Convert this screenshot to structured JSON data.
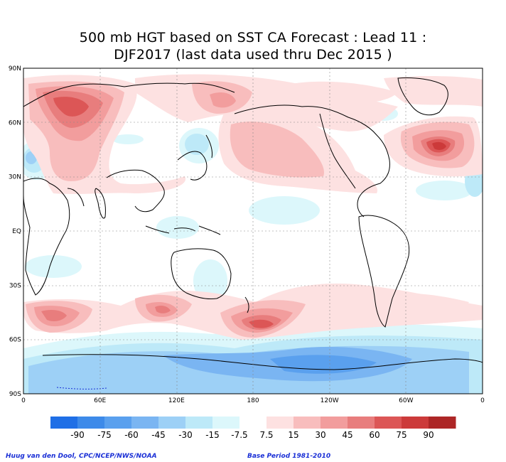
{
  "chart_data": {
    "type": "heatmap",
    "title": "500 mb HGT based on SST CA Forecast : Lead 11 :",
    "subtitle": "DJF2017 (last data used thru Dec 2015 )",
    "x_ticks": [
      "0",
      "60E",
      "120E",
      "180",
      "120W",
      "60W",
      "0"
    ],
    "y_ticks": [
      "90N",
      "60N",
      "30N",
      "EQ",
      "30S",
      "60S",
      "90S"
    ],
    "xlim": [
      0,
      360
    ],
    "ylim": [
      -90,
      90
    ],
    "grid": "dotted",
    "colorbar": {
      "levels": [
        "-90",
        "-75",
        "-60",
        "-45",
        "-30",
        "-15",
        "-7.5",
        "7.5",
        "15",
        "30",
        "45",
        "60",
        "75",
        "90"
      ],
      "colors": [
        "#1f6fe6",
        "#3d8ae9",
        "#5aa0ee",
        "#7ab5f2",
        "#9dd0f6",
        "#bde9f8",
        "#dcf7fb",
        "#ffffff",
        "#fde1e1",
        "#f8bdbd",
        "#f29d9d",
        "#e87d7d",
        "#dc5656",
        "#cc3a3a",
        "#ad2626"
      ]
    },
    "anomalies": [
      {
        "name": "Eurasia high",
        "lon": 30,
        "lat": 63,
        "max_level": "75"
      },
      {
        "name": "North Pacific high",
        "lon": 155,
        "lat": 68,
        "max_level": "45"
      },
      {
        "name": "East Pacific high",
        "lon": 200,
        "lat": 35,
        "max_level": "30"
      },
      {
        "name": "North Atlantic high",
        "lon": 335,
        "lat": 45,
        "max_level": "75"
      },
      {
        "name": "Southern Atlantic high",
        "lon": 20,
        "lat": -45,
        "max_level": "45"
      },
      {
        "name": "Southern Indian high",
        "lon": 110,
        "lat": -42,
        "max_level": "45"
      },
      {
        "name": "South Pacific high",
        "lon": 195,
        "lat": -48,
        "max_level": "60"
      },
      {
        "name": "Antarctic low",
        "lon": 230,
        "lat": -72,
        "min_level": "-45"
      }
    ]
  },
  "credits": {
    "left": "Huug van den Dool, CPC/NCEP/NWS/NOAA",
    "right": "Base Period 1981-2010"
  }
}
